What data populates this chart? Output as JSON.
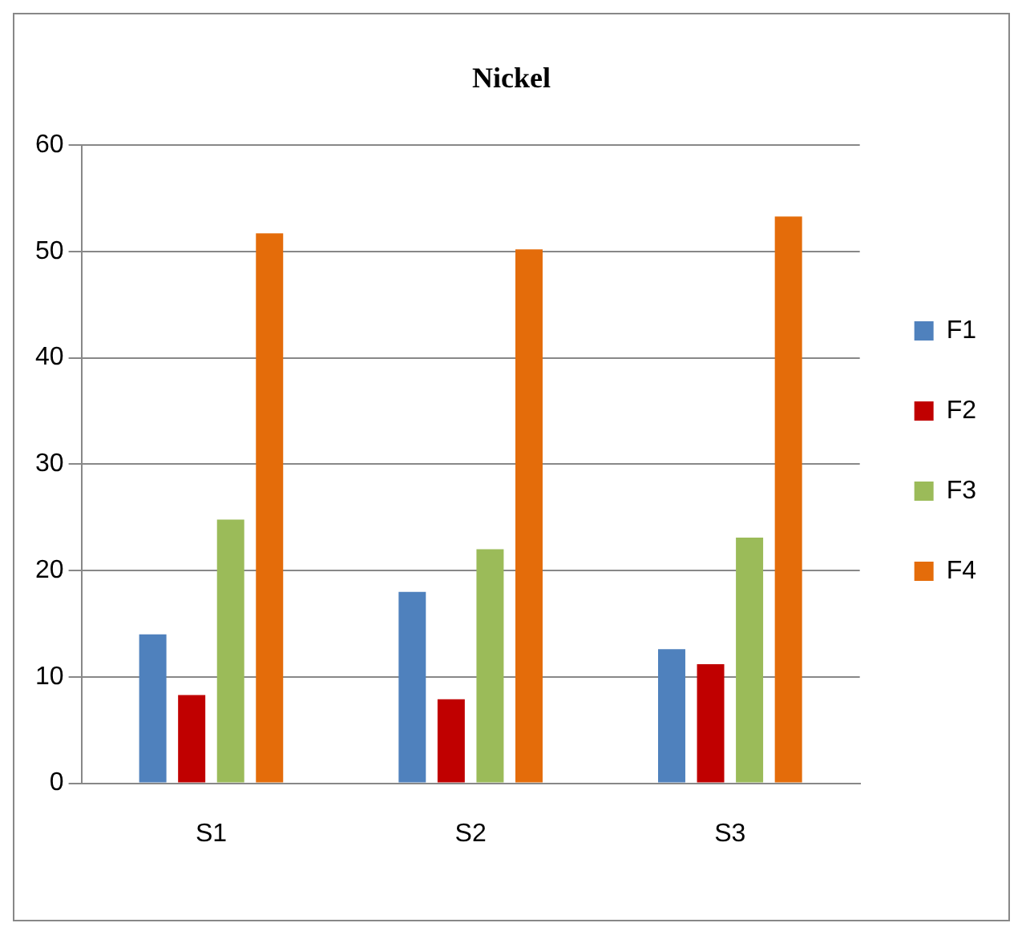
{
  "chart_data": {
    "type": "bar",
    "title": "Nickel",
    "categories": [
      "S1",
      "S2",
      "S3"
    ],
    "series": [
      {
        "name": "F1",
        "color": "#4f81bd",
        "values": [
          14,
          18,
          12.6
        ]
      },
      {
        "name": "F2",
        "color": "#c00000",
        "values": [
          8.3,
          7.9,
          11.2
        ]
      },
      {
        "name": "F3",
        "color": "#9bbb59",
        "values": [
          24.8,
          22,
          23.1
        ]
      },
      {
        "name": "F4",
        "color": "#e46c0a",
        "values": [
          51.7,
          50.2,
          53.3
        ]
      }
    ],
    "ylim": [
      0,
      60
    ],
    "yticks": [
      0,
      10,
      20,
      30,
      40,
      50,
      60
    ],
    "grid": "y",
    "legend": "right"
  }
}
